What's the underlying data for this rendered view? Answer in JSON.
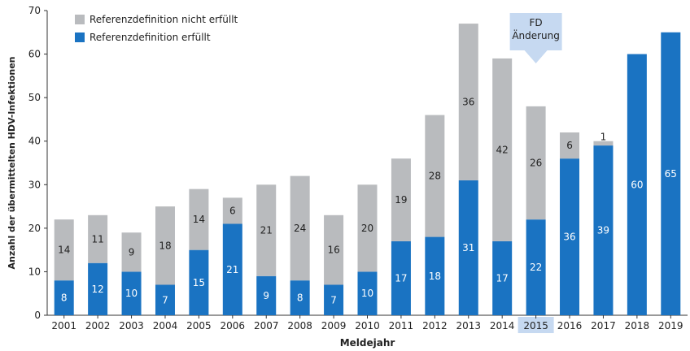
{
  "chart_data": {
    "type": "bar",
    "stacked": true,
    "categories": [
      "2001",
      "2002",
      "2003",
      "2004",
      "2005",
      "2006",
      "2007",
      "2008",
      "2009",
      "2010",
      "2011",
      "2012",
      "2013",
      "2014",
      "2015",
      "2016",
      "2017",
      "2018",
      "2019"
    ],
    "series": [
      {
        "name": "Referenzdefinition erfüllt",
        "color": "#1a73c2",
        "label_color": "#ffffff",
        "values": [
          8,
          12,
          10,
          7,
          15,
          21,
          9,
          8,
          7,
          10,
          17,
          18,
          31,
          17,
          22,
          36,
          39,
          60,
          65
        ]
      },
      {
        "name": "Referenzdefinition nicht erfüllt",
        "color": "#b9bbbe",
        "label_color": "#222222",
        "values": [
          14,
          11,
          9,
          18,
          14,
          6,
          21,
          24,
          16,
          20,
          19,
          28,
          36,
          42,
          26,
          6,
          1,
          0,
          0
        ]
      }
    ],
    "xlabel": "Meldejahr",
    "ylabel": "Anzahl der übermittelten HDV-Infektionen",
    "ylim": [
      0,
      70
    ],
    "yticks": [
      0,
      10,
      20,
      30,
      40,
      50,
      60,
      70
    ],
    "grid": false,
    "legend": "top-left",
    "highlight_category": "2015",
    "annotation": {
      "lines": [
        "FD",
        "Änderung"
      ],
      "category": "2015",
      "color": "#c6d9f1"
    }
  }
}
